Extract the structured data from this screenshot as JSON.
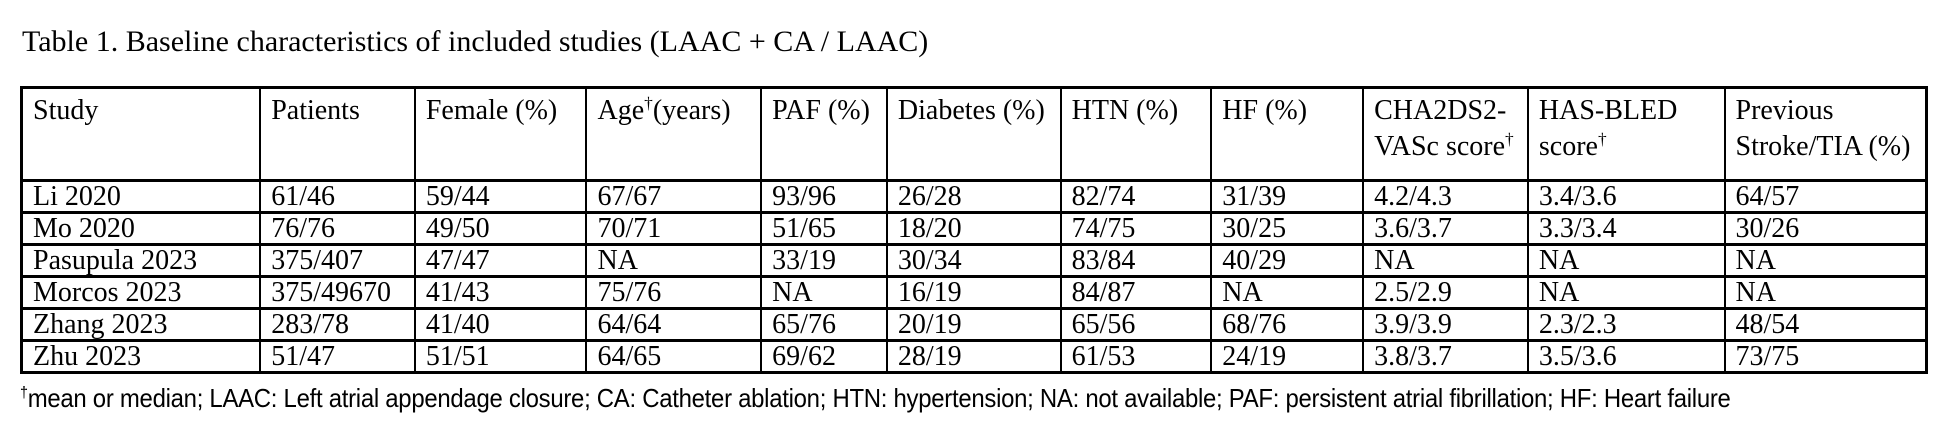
{
  "title": "Table 1. Baseline characteristics of included studies (LAAC + CA / LAAC)",
  "table": {
    "headers": [
      {
        "pre": "Study",
        "sup": "",
        "post": ""
      },
      {
        "pre": "Patients",
        "sup": "",
        "post": ""
      },
      {
        "pre": "Female (%)",
        "sup": "",
        "post": ""
      },
      {
        "pre": "Age",
        "sup": "†",
        "post": "(years)"
      },
      {
        "pre": "PAF (%)",
        "sup": "",
        "post": ""
      },
      {
        "pre": "Diabetes (%)",
        "sup": "",
        "post": ""
      },
      {
        "pre": "HTN (%)",
        "sup": "",
        "post": ""
      },
      {
        "pre": "HF (%)",
        "sup": "",
        "post": ""
      },
      {
        "pre": "CHA2DS2-VASc score",
        "sup": "†",
        "post": ""
      },
      {
        "pre": "HAS-BLED score",
        "sup": "†",
        "post": ""
      },
      {
        "pre": "Previous Stroke/TIA (%)",
        "sup": "",
        "post": ""
      }
    ],
    "rows": [
      {
        "cells": [
          "Li 2020",
          "61/46",
          "59/44",
          "67/67",
          "93/96",
          "26/28",
          "82/74",
          "31/39",
          "4.2/4.3",
          "3.4/3.6",
          "64/57"
        ]
      },
      {
        "cells": [
          "Mo 2020",
          "76/76",
          "49/50",
          "70/71",
          "51/65",
          "18/20",
          "74/75",
          "30/25",
          "3.6/3.7",
          "3.3/3.4",
          "30/26"
        ]
      },
      {
        "cells": [
          "Pasupula 2023",
          "375/407",
          "47/47",
          "NA",
          "33/19",
          "30/34",
          "83/84",
          "40/29",
          "NA",
          "NA",
          "NA"
        ]
      },
      {
        "cells": [
          "Morcos 2023",
          "375/49670",
          "41/43",
          "75/76",
          "NA",
          "16/19",
          "84/87",
          "NA",
          "2.5/2.9",
          "NA",
          "NA"
        ]
      },
      {
        "cells": [
          "Zhang 2023",
          "283/78",
          "41/40",
          "64/64",
          "65/76",
          "20/19",
          "65/56",
          "68/76",
          "3.9/3.9",
          "2.3/2.3",
          "48/54"
        ]
      },
      {
        "cells": [
          "Zhu 2023",
          "51/47",
          "51/51",
          "64/65",
          "69/62",
          "28/19",
          "61/53",
          "24/19",
          "3.8/3.7",
          "3.5/3.6",
          "73/75"
        ]
      }
    ]
  },
  "footnote": {
    "sup": "†",
    "text": "mean or median; LAAC: Left atrial appendage closure; CA: Catheter ablation; HTN: hypertension; NA: not available; PAF: persistent atrial fibrillation; HF: Heart failure"
  }
}
